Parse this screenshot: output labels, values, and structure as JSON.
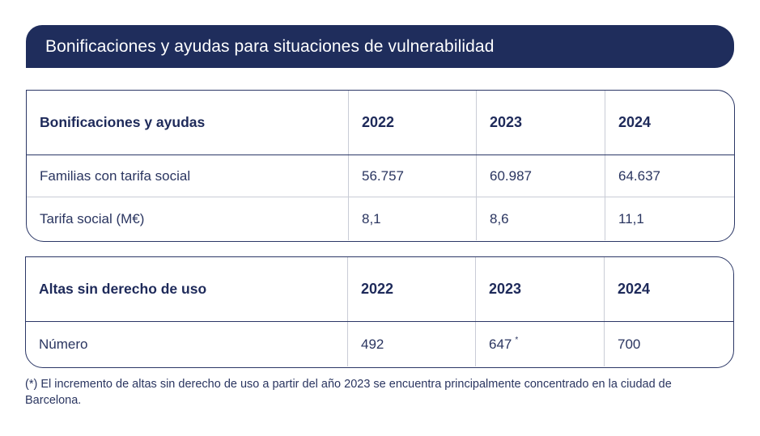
{
  "title": "Bonificaciones y ayudas para situaciones de vulnerabilidad",
  "table1": {
    "headers": [
      "Bonificaciones y ayudas",
      "2022",
      "2023",
      "2024"
    ],
    "rows": [
      [
        "Familias con tarifa social",
        "56.757",
        "60.987",
        "64.637"
      ],
      [
        "Tarifa social (M€)",
        "8,1",
        "8,6",
        "11,1"
      ]
    ]
  },
  "table2": {
    "headers": [
      "Altas sin derecho de uso",
      "2022",
      "2023",
      "2024"
    ],
    "rows": [
      [
        "Número",
        "492",
        "647",
        "700"
      ]
    ],
    "mark": "*"
  },
  "footnote": "(*) El incremento de altas sin derecho de uso a partir del año 2023 se encuentra principalmente concentrado en la ciudad de Barcelona.",
  "colors": {
    "title_bg": "#1f2d5c",
    "text": "#2a3560",
    "border": "#2b3766"
  }
}
